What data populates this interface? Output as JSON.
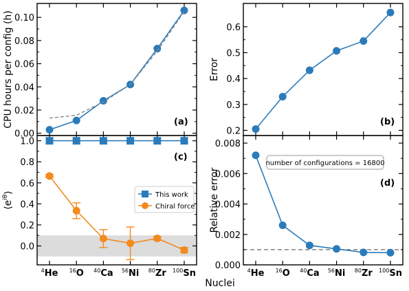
{
  "shared_xlabel": "Nuclei",
  "nuclei": [
    {
      "mass": "4",
      "symbol": "He"
    },
    {
      "mass": "16",
      "symbol": "O"
    },
    {
      "mass": "40",
      "symbol": "Ca"
    },
    {
      "mass": "56",
      "symbol": "Ni"
    },
    {
      "mass": "80",
      "symbol": "Zr"
    },
    {
      "mass": "100",
      "symbol": "Sn"
    }
  ],
  "chart_data": [
    {
      "panel": "(a)",
      "type": "line",
      "ylabel": "CPU hours per config (h)",
      "ylim": [
        -0.002,
        0.112
      ],
      "yticks": [
        0.0,
        0.02,
        0.04,
        0.06,
        0.08,
        0.1
      ],
      "ytick_labels": [
        "0.00",
        "0.02",
        "0.04",
        "0.06",
        "0.08",
        "0.10"
      ],
      "series": [
        {
          "values": [
            0.003,
            0.011,
            0.028,
            0.042,
            0.073,
            0.106
          ],
          "color": "#2b7bba",
          "marker": "circle"
        },
        {
          "values": [
            0.013,
            0.0155,
            0.027,
            0.042,
            0.071,
            0.105
          ],
          "color": "#888888",
          "style": "dashed",
          "marker": "none"
        }
      ]
    },
    {
      "panel": "(b)",
      "type": "line",
      "ylabel": "Error",
      "ylim": [
        0.18,
        0.69
      ],
      "yticks": [
        0.2,
        0.3,
        0.4,
        0.5,
        0.6
      ],
      "ytick_labels": [
        "0.2",
        "0.3",
        "0.4",
        "0.5",
        "0.6"
      ],
      "series": [
        {
          "values": [
            0.205,
            0.33,
            0.432,
            0.507,
            0.545,
            0.655
          ],
          "color": "#2b7bba",
          "marker": "circle"
        }
      ]
    },
    {
      "panel": "(c)",
      "type": "line",
      "ylabel": "⟨e^{iθ}⟩",
      "ylim": [
        -0.18,
        1.05
      ],
      "yticks": [
        0.0,
        0.2,
        0.4,
        0.6,
        0.8,
        1.0
      ],
      "ytick_labels": [
        "0.0",
        "0.2",
        "0.4",
        "0.6",
        "0.8",
        "1.0"
      ],
      "band": [
        -0.1,
        0.1
      ],
      "legend": {
        "placement": "center-right",
        "entries": [
          "This work",
          "Chiral force"
        ]
      },
      "series": [
        {
          "name": "This work",
          "values": [
            1.0,
            1.0,
            1.0,
            1.0,
            1.0,
            1.0
          ],
          "errors": [
            0,
            0,
            0,
            0,
            0,
            0
          ],
          "color": "#2b7bba",
          "marker": "square"
        },
        {
          "name": "Chiral force",
          "values": [
            0.665,
            0.335,
            0.07,
            0.025,
            0.072,
            -0.04
          ],
          "errors": [
            0.015,
            0.075,
            0.085,
            0.155,
            0.018,
            0.025
          ],
          "color": "#f28a1e",
          "marker": "circle"
        }
      ]
    },
    {
      "panel": "(d)",
      "type": "line",
      "ylabel": "Relative error",
      "ylim": [
        0.0,
        0.0085
      ],
      "yticks": [
        0.0,
        0.002,
        0.004,
        0.006,
        0.008
      ],
      "ytick_labels": [
        "0.000",
        "0.002",
        "0.004",
        "0.006",
        "0.008"
      ],
      "reference_line": 0.001,
      "annotation": "number of configurations = 16800",
      "series": [
        {
          "values": [
            0.0072,
            0.0026,
            0.00128,
            0.00105,
            0.00082,
            0.0008
          ],
          "color": "#2b7bba",
          "marker": "circle"
        }
      ]
    }
  ]
}
